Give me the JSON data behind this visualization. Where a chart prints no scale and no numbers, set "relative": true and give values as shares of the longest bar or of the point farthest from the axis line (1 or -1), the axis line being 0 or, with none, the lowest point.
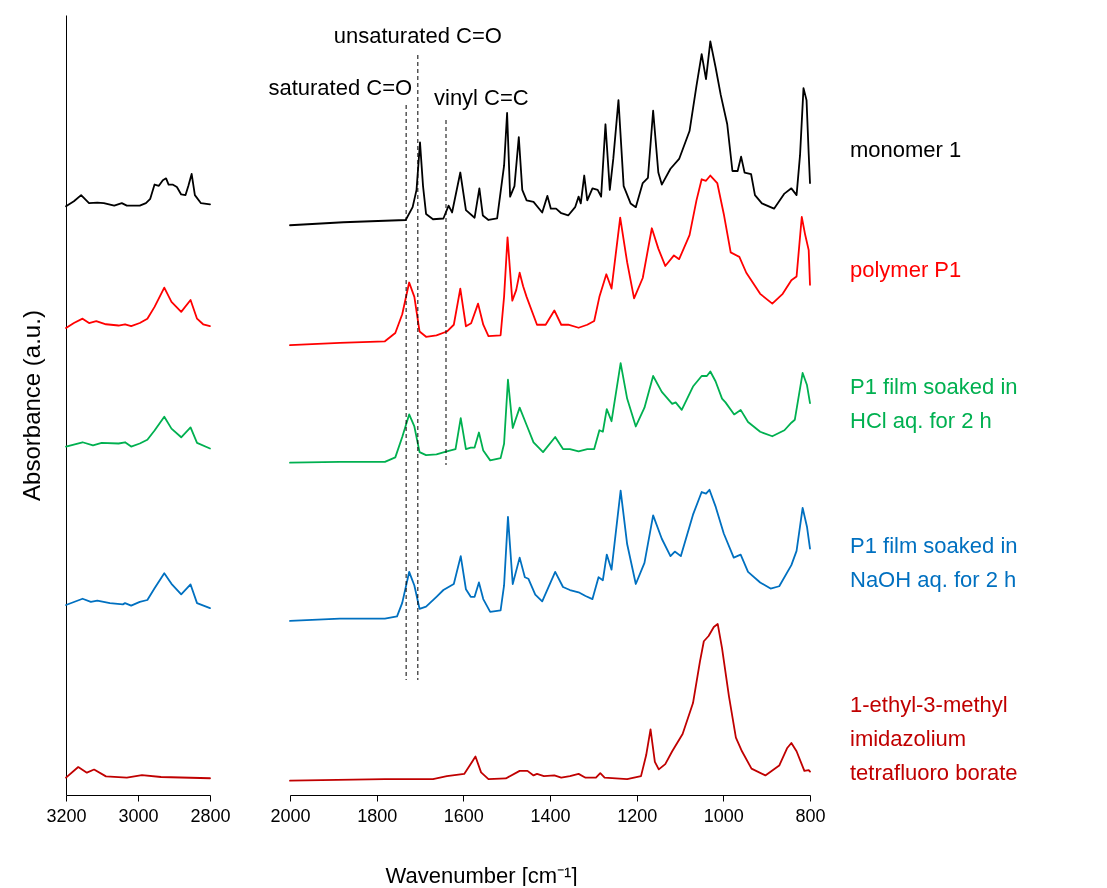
{
  "chart_data": [
    {
      "type": "line",
      "ylabel": "Absorbance (a.u.)",
      "relative": true,
      "xlim": [
        3200,
        2800
      ],
      "xticks": [
        3200,
        3000,
        2800
      ],
      "line_style": "solid",
      "series": [
        {
          "color": "#000000",
          "x": [
            3200,
            3178,
            3158,
            3136,
            3113,
            3095,
            3066,
            3045,
            3031,
            2995,
            2978,
            2966,
            2954,
            2942,
            2931,
            2922,
            2915,
            2904,
            2892,
            2880,
            2868,
            2860,
            2851,
            2842,
            2825,
            2800
          ],
          "values": [
            0.948,
            0.956,
            0.966,
            0.953,
            0.954,
            0.953,
            0.949,
            0.953,
            0.949,
            0.949,
            0.953,
            0.96,
            0.983,
            0.981,
            0.99,
            0.993,
            0.983,
            0.983,
            0.979,
            0.967,
            0.966,
            0.981,
            1,
            0.966,
            0.953,
            0.951
          ]
        },
        {
          "color": "#ff0000",
          "x": [
            3200,
            3178,
            3154,
            3136,
            3116,
            3089,
            3054,
            3036,
            3019,
            2995,
            2974,
            2954,
            2927,
            2907,
            2880,
            2854,
            2836,
            2819,
            2800
          ],
          "values": [
            0.752,
            0.76,
            0.767,
            0.76,
            0.763,
            0.758,
            0.756,
            0.758,
            0.755,
            0.76,
            0.767,
            0.786,
            0.817,
            0.794,
            0.778,
            0.797,
            0.767,
            0.758,
            0.755
          ]
        },
        {
          "color": "#00b050",
          "x": [
            3200,
            3154,
            3125,
            3101,
            3054,
            3036,
            3019,
            2995,
            2974,
            2954,
            2927,
            2907,
            2880,
            2854,
            2836,
            2800
          ],
          "values": [
            0.561,
            0.568,
            0.563,
            0.567,
            0.566,
            0.568,
            0.561,
            0.566,
            0.572,
            0.587,
            0.609,
            0.59,
            0.576,
            0.592,
            0.567,
            0.558
          ]
        },
        {
          "color": "#0070c0",
          "x": [
            3200,
            3154,
            3131,
            3113,
            3078,
            3042,
            3036,
            3019,
            2995,
            2974,
            2954,
            2927,
            2907,
            2880,
            2854,
            2836,
            2800
          ],
          "values": [
            0.306,
            0.316,
            0.311,
            0.313,
            0.309,
            0.307,
            0.309,
            0.305,
            0.311,
            0.314,
            0.333,
            0.357,
            0.34,
            0.323,
            0.339,
            0.309,
            0.301
          ]
        },
        {
          "color": "#c00000",
          "x": [
            3200,
            3166,
            3142,
            3122,
            3089,
            3031,
            2989,
            2936,
            2800
          ],
          "values": [
            0.028,
            0.045,
            0.036,
            0.041,
            0.03,
            0.028,
            0.032,
            0.029,
            0.027
          ]
        }
      ]
    },
    {
      "type": "line",
      "xlabel": "Wavenumber [cm⁻¹]",
      "relative": true,
      "xlim": [
        2000,
        800
      ],
      "xticks": [
        2000,
        1800,
        1600,
        1400,
        1200,
        1000,
        800
      ],
      "line_style": "solid",
      "ref_lines": [
        {
          "axis": "x",
          "value": 1732,
          "label": "saturated C=O",
          "line_style": "dashed"
        },
        {
          "axis": "x",
          "value": 1705,
          "label": "unsaturated C=O",
          "line_style": "dashed"
        },
        {
          "axis": "x",
          "value": 1640,
          "label": "vinyl C=C",
          "line_style": "dashed"
        }
      ],
      "series": [
        {
          "name": "monomer 1",
          "color": "#000000",
          "x": [
            2000,
            1877,
            1733,
            1717,
            1708,
            1700,
            1693,
            1686,
            1670,
            1646,
            1634,
            1626,
            1607,
            1594,
            1574,
            1563,
            1555,
            1542,
            1522,
            1506,
            1499,
            1492,
            1482,
            1472,
            1464,
            1454,
            1438,
            1418,
            1406,
            1398,
            1386,
            1374,
            1358,
            1342,
            1334,
            1329,
            1321,
            1314,
            1302,
            1290,
            1282,
            1272,
            1262,
            1254,
            1242,
            1230,
            1214,
            1202,
            1186,
            1174,
            1162,
            1150,
            1142,
            1122,
            1102,
            1078,
            1062,
            1050,
            1040,
            1030,
            1018,
            1006,
            991,
            979,
            967,
            959,
            951,
            936,
            927,
            911,
            883,
            859,
            843,
            831,
            823,
            815,
            808,
            803,
            800
          ],
          "values": [
            0.756,
            0.76,
            0.763,
            0.78,
            0.803,
            0.866,
            0.808,
            0.771,
            0.764,
            0.765,
            0.782,
            0.773,
            0.826,
            0.776,
            0.766,
            0.805,
            0.769,
            0.763,
            0.765,
            0.835,
            0.905,
            0.794,
            0.808,
            0.873,
            0.803,
            0.789,
            0.787,
            0.773,
            0.795,
            0.778,
            0.778,
            0.772,
            0.769,
            0.78,
            0.794,
            0.785,
            0.822,
            0.789,
            0.805,
            0.803,
            0.794,
            0.89,
            0.803,
            0.844,
            0.922,
            0.808,
            0.785,
            0.78,
            0.812,
            0.819,
            0.908,
            0.826,
            0.81,
            0.831,
            0.844,
            0.881,
            0.941,
            0.983,
            0.95,
            1,
            0.966,
            0.929,
            0.89,
            0.828,
            0.828,
            0.847,
            0.826,
            0.824,
            0.796,
            0.785,
            0.778,
            0.798,
            0.805,
            0.796,
            0.849,
            0.938,
            0.922,
            0.851,
            0.812
          ]
        },
        {
          "name": "polymer P1",
          "color": "#ff0000",
          "x": [
            2000,
            1885,
            1781,
            1757,
            1741,
            1725,
            1713,
            1701,
            1686,
            1662,
            1638,
            1622,
            1607,
            1594,
            1582,
            1566,
            1554,
            1542,
            1514,
            1506,
            1498,
            1487,
            1478,
            1470,
            1462,
            1454,
            1430,
            1410,
            1390,
            1374,
            1358,
            1334,
            1314,
            1298,
            1286,
            1270,
            1258,
            1238,
            1222,
            1206,
            1186,
            1165,
            1150,
            1134,
            1114,
            1102,
            1078,
            1062,
            1050,
            1040,
            1030,
            1014,
            999,
            983,
            963,
            947,
            915,
            887,
            863,
            843,
            831,
            819,
            811,
            803,
            800
          ],
          "values": [
            0.597,
            0.6,
            0.602,
            0.613,
            0.638,
            0.68,
            0.661,
            0.615,
            0.608,
            0.61,
            0.615,
            0.624,
            0.672,
            0.622,
            0.626,
            0.652,
            0.624,
            0.609,
            0.61,
            0.661,
            0.74,
            0.656,
            0.67,
            0.693,
            0.675,
            0.661,
            0.624,
            0.624,
            0.643,
            0.624,
            0.624,
            0.62,
            0.624,
            0.629,
            0.661,
            0.691,
            0.672,
            0.766,
            0.707,
            0.659,
            0.686,
            0.752,
            0.725,
            0.702,
            0.716,
            0.711,
            0.743,
            0.789,
            0.817,
            0.815,
            0.822,
            0.812,
            0.771,
            0.72,
            0.714,
            0.693,
            0.665,
            0.652,
            0.665,
            0.683,
            0.688,
            0.767,
            0.743,
            0.723,
            0.677
          ]
        },
        {
          "name": "P1 film soaked in HCl aq. for 2 h",
          "color": "#00b050",
          "x": [
            2000,
            1885,
            1781,
            1757,
            1741,
            1725,
            1713,
            1701,
            1686,
            1662,
            1638,
            1618,
            1606,
            1594,
            1583,
            1574,
            1564,
            1554,
            1538,
            1514,
            1506,
            1497,
            1486,
            1470,
            1454,
            1438,
            1416,
            1388,
            1370,
            1354,
            1334,
            1314,
            1298,
            1286,
            1278,
            1269,
            1258,
            1237,
            1222,
            1202,
            1182,
            1162,
            1142,
            1118,
            1110,
            1096,
            1070,
            1050,
            1038,
            1030,
            1018,
            1003,
            995,
            975,
            960,
            943,
            915,
            887,
            859,
            843,
            835,
            817,
            807,
            800
          ],
          "values": [
            0.441,
            0.442,
            0.442,
            0.448,
            0.475,
            0.505,
            0.489,
            0.455,
            0.451,
            0.452,
            0.456,
            0.459,
            0.5,
            0.459,
            0.461,
            0.461,
            0.481,
            0.457,
            0.444,
            0.447,
            0.466,
            0.551,
            0.487,
            0.514,
            0.491,
            0.468,
            0.455,
            0.475,
            0.459,
            0.459,
            0.456,
            0.459,
            0.459,
            0.484,
            0.482,
            0.512,
            0.496,
            0.573,
            0.526,
            0.489,
            0.514,
            0.556,
            0.535,
            0.519,
            0.521,
            0.511,
            0.542,
            0.556,
            0.556,
            0.562,
            0.549,
            0.526,
            0.521,
            0.505,
            0.511,
            0.495,
            0.482,
            0.476,
            0.484,
            0.494,
            0.498,
            0.56,
            0.544,
            0.52
          ]
        },
        {
          "name": "P1 film soaked in NaOH aq. for 2 h",
          "color": "#0070c0",
          "x": [
            2000,
            1885,
            1781,
            1753,
            1741,
            1725,
            1713,
            1701,
            1686,
            1662,
            1646,
            1622,
            1606,
            1594,
            1583,
            1574,
            1564,
            1554,
            1538,
            1514,
            1506,
            1497,
            1486,
            1470,
            1458,
            1450,
            1434,
            1418,
            1388,
            1370,
            1354,
            1334,
            1318,
            1302,
            1288,
            1278,
            1269,
            1258,
            1237,
            1222,
            1202,
            1182,
            1162,
            1142,
            1122,
            1112,
            1098,
            1070,
            1050,
            1040,
            1032,
            1018,
            999,
            976,
            960,
            943,
            915,
            891,
            871,
            843,
            831,
            817,
            807,
            800
          ],
          "values": [
            0.231,
            0.234,
            0.234,
            0.237,
            0.255,
            0.296,
            0.278,
            0.247,
            0.25,
            0.263,
            0.272,
            0.28,
            0.317,
            0.273,
            0.263,
            0.263,
            0.282,
            0.26,
            0.243,
            0.245,
            0.278,
            0.369,
            0.28,
            0.315,
            0.289,
            0.287,
            0.266,
            0.257,
            0.296,
            0.276,
            0.272,
            0.269,
            0.264,
            0.26,
            0.289,
            0.285,
            0.319,
            0.299,
            0.404,
            0.333,
            0.28,
            0.308,
            0.371,
            0.34,
            0.317,
            0.323,
            0.317,
            0.372,
            0.402,
            0.4,
            0.405,
            0.383,
            0.347,
            0.315,
            0.319,
            0.296,
            0.282,
            0.274,
            0.277,
            0.305,
            0.324,
            0.381,
            0.356,
            0.327
          ]
        },
        {
          "name": "1-ethyl-3-methyl imidazolium tetrafluoro borate",
          "color": "#c00000",
          "x": [
            2000,
            1781,
            1670,
            1638,
            1598,
            1583,
            1572,
            1559,
            1542,
            1502,
            1470,
            1452,
            1438,
            1430,
            1414,
            1390,
            1374,
            1354,
            1334,
            1318,
            1294,
            1284,
            1274,
            1222,
            1190,
            1178,
            1168,
            1158,
            1149,
            1134,
            1118,
            1094,
            1070,
            1054,
            1045,
            1034,
            1022,
            1013,
            1003,
            987,
            971,
            957,
            935,
            903,
            871,
            853,
            843,
            831,
            813,
            803,
            800
          ],
          "values": [
            0.019,
            0.021,
            0.021,
            0.025,
            0.028,
            0.041,
            0.051,
            0.03,
            0.021,
            0.022,
            0.032,
            0.032,
            0.026,
            0.028,
            0.025,
            0.026,
            0.023,
            0.025,
            0.028,
            0.023,
            0.023,
            0.029,
            0.023,
            0.021,
            0.025,
            0.053,
            0.087,
            0.044,
            0.034,
            0.041,
            0.058,
            0.081,
            0.122,
            0.177,
            0.204,
            0.211,
            0.223,
            0.227,
            0.195,
            0.131,
            0.076,
            0.058,
            0.035,
            0.026,
            0.039,
            0.062,
            0.069,
            0.058,
            0.032,
            0.033,
            0.031
          ]
        }
      ]
    }
  ]
}
